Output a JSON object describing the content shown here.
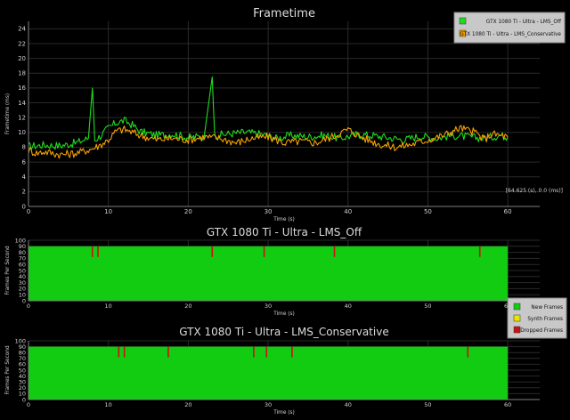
{
  "chart_data": [
    {
      "type": "line",
      "title": "Frametime",
      "xlabel": "Time (s)",
      "ylabel": "Frametime (ms)",
      "xlim": [
        0,
        64
      ],
      "ylim": [
        0,
        25
      ],
      "xticks": [
        0,
        10,
        20,
        30,
        40,
        50,
        60
      ],
      "yticks": [
        0,
        2,
        4,
        6,
        8,
        10,
        12,
        14,
        16,
        18,
        20,
        22,
        24
      ],
      "grid": true,
      "legend_position": "top-right",
      "readout": "[64.625 (s), 0.0 (ms)]",
      "series": [
        {
          "name": "GTX 1080 Ti - Ultra - LMS_Off",
          "color": "#1fdc1f",
          "points": [
            [
              0,
              8.1
            ],
            [
              2,
              8.3
            ],
            [
              4,
              8.2
            ],
            [
              6,
              8.6
            ],
            [
              7.5,
              9.2
            ],
            [
              8,
              16.0
            ],
            [
              8.3,
              9.0
            ],
            [
              9,
              9.5
            ],
            [
              10,
              10.6
            ],
            [
              11,
              11.3
            ],
            [
              12,
              11.6
            ],
            [
              13,
              11.0
            ],
            [
              14,
              10.1
            ],
            [
              16,
              9.6
            ],
            [
              18,
              9.8
            ],
            [
              20,
              9.3
            ],
            [
              22,
              9.5
            ],
            [
              23,
              17.5
            ],
            [
              23.3,
              9.6
            ],
            [
              25,
              9.8
            ],
            [
              27,
              10.0
            ],
            [
              29,
              9.8
            ],
            [
              31,
              9.2
            ],
            [
              33,
              9.6
            ],
            [
              35,
              9.4
            ],
            [
              37,
              9.6
            ],
            [
              39,
              9.2
            ],
            [
              41,
              9.7
            ],
            [
              43,
              9.6
            ],
            [
              45,
              9.3
            ],
            [
              47,
              9.0
            ],
            [
              49,
              9.5
            ],
            [
              51,
              9.2
            ],
            [
              53,
              9.6
            ],
            [
              55,
              9.4
            ],
            [
              57,
              9.2
            ],
            [
              59,
              9.6
            ],
            [
              60,
              9.4
            ]
          ]
        },
        {
          "name": "GTX 1080 Ti - Ultra - LMS_Conservative",
          "color": "#f5a000",
          "points": [
            [
              0,
              7.6
            ],
            [
              1,
              7.2
            ],
            [
              2,
              7.4
            ],
            [
              4,
              7.0
            ],
            [
              6,
              7.2
            ],
            [
              8,
              7.8
            ],
            [
              9,
              8.3
            ],
            [
              10,
              9.0
            ],
            [
              11,
              10.2
            ],
            [
              12,
              10.4
            ],
            [
              13,
              10.0
            ],
            [
              14,
              9.6
            ],
            [
              16,
              9.0
            ],
            [
              18,
              9.2
            ],
            [
              20,
              9.0
            ],
            [
              22,
              9.4
            ],
            [
              24,
              9.2
            ],
            [
              26,
              8.6
            ],
            [
              28,
              9.2
            ],
            [
              30,
              9.4
            ],
            [
              32,
              8.6
            ],
            [
              34,
              8.8
            ],
            [
              36,
              8.6
            ],
            [
              38,
              9.4
            ],
            [
              40,
              10.4
            ],
            [
              42,
              9.2
            ],
            [
              44,
              8.4
            ],
            [
              46,
              8.0
            ],
            [
              48,
              8.4
            ],
            [
              50,
              9.0
            ],
            [
              52,
              9.6
            ],
            [
              54,
              10.6
            ],
            [
              56,
              10.0
            ],
            [
              57,
              9.0
            ],
            [
              58,
              9.8
            ],
            [
              59,
              9.6
            ],
            [
              60,
              9.4
            ]
          ]
        }
      ]
    },
    {
      "type": "area",
      "title": "GTX 1080 Ti - Ultra - LMS_Off",
      "xlabel": "Time (s)",
      "ylabel": "Frames Per Second",
      "xlim": [
        0,
        64
      ],
      "ylim": [
        0,
        100
      ],
      "xticks": [
        0,
        10,
        20,
        30,
        40,
        50,
        60
      ],
      "yticks": [
        0,
        10,
        20,
        30,
        40,
        50,
        60,
        70,
        80,
        90,
        100
      ],
      "grid": true,
      "x_end": 60,
      "fps": 90,
      "dropped_frames_at": [
        8.0,
        8.7,
        23.0,
        29.5,
        38.3,
        56.5
      ],
      "series": [
        {
          "name": "New Frames",
          "color": "#11cc11"
        },
        {
          "name": "Synth Frames",
          "color": "#e6e600"
        },
        {
          "name": "Dropped Frames",
          "color": "#cc1111"
        }
      ]
    },
    {
      "type": "area",
      "title": "GTX 1080 Ti - Ultra - LMS_Conservative",
      "xlabel": "Time (s)",
      "ylabel": "Frames Per Second",
      "xlim": [
        0,
        64
      ],
      "ylim": [
        0,
        100
      ],
      "xticks": [
        0,
        10,
        20,
        30,
        40,
        50,
        60
      ],
      "yticks": [
        0,
        10,
        20,
        30,
        40,
        50,
        60,
        70,
        80,
        90,
        100
      ],
      "grid": true,
      "x_end": 60,
      "fps": 90,
      "dropped_frames_at": [
        11.3,
        12.0,
        17.5,
        28.2,
        29.8,
        33.0,
        55.0
      ],
      "series": [
        {
          "name": "New Frames",
          "color": "#11cc11"
        },
        {
          "name": "Synth Frames",
          "color": "#e6e600"
        },
        {
          "name": "Dropped Frames",
          "color": "#cc1111"
        }
      ]
    }
  ],
  "fps_legend": {
    "position": "right",
    "items": [
      {
        "name": "New Frames",
        "color": "#11cc11"
      },
      {
        "name": "Synth Frames",
        "color": "#e6e600"
      },
      {
        "name": "Dropped Frames",
        "color": "#cc1111"
      }
    ]
  }
}
